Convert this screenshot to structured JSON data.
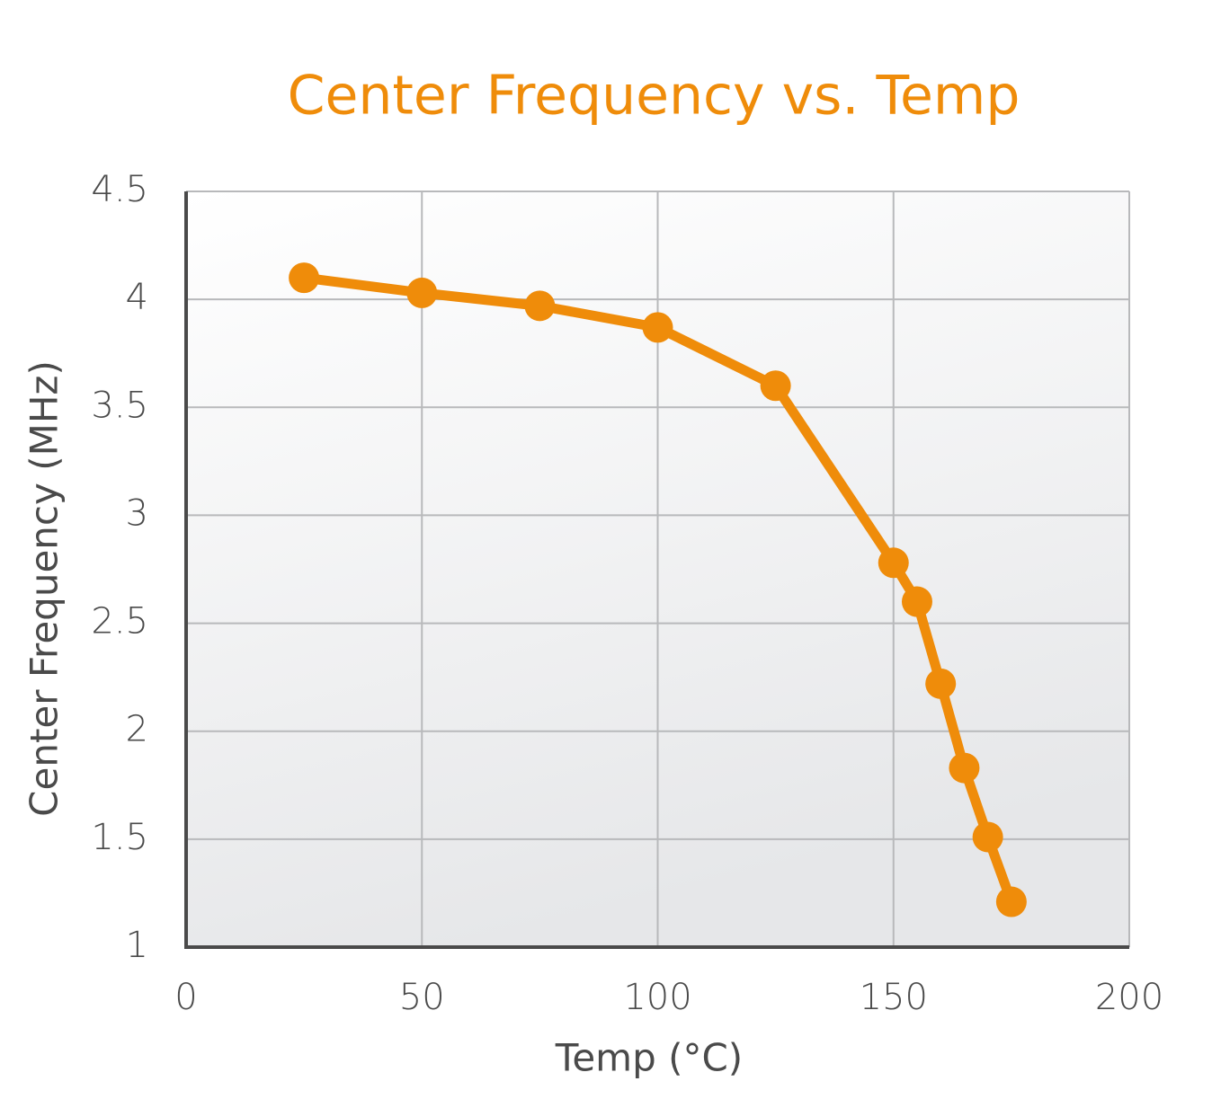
{
  "chart_data": {
    "type": "line",
    "title": "Center Frequency vs. Temp",
    "x_label": "Temp (°C)",
    "y_label": "Center Frequency (MHz)",
    "x": [
      25,
      50,
      75,
      100,
      125,
      150,
      155,
      160,
      165,
      170,
      175
    ],
    "series": [
      {
        "name": "Center Frequency",
        "color": "#ef8c0a",
        "values": [
          4.1,
          4.03,
          3.97,
          3.87,
          3.6,
          2.78,
          2.6,
          2.22,
          1.83,
          1.51,
          1.21
        ]
      }
    ],
    "xlim": [
      0,
      200
    ],
    "xticks": [
      0,
      50,
      100,
      150,
      200
    ],
    "ylim": [
      1,
      4.5
    ],
    "yticks": [
      1,
      1.5,
      2,
      2.5,
      3,
      3.5,
      4,
      4.5
    ],
    "grid": true
  }
}
